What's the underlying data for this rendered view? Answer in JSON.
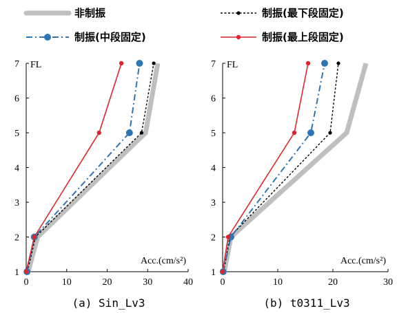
{
  "legend": [
    {
      "label": "非制振",
      "color": "#bfbfbf",
      "style": "thick-solid",
      "marker": "none"
    },
    {
      "label": "制振(最下段固定)",
      "color": "#000000",
      "style": "dotted",
      "marker": "small-dot"
    },
    {
      "label": "制振(中段固定)",
      "color": "#2e75b6",
      "style": "dash-dot",
      "marker": "large-dot"
    },
    {
      "label": "制振(最上段固定)",
      "color": "#e0242c",
      "style": "solid",
      "marker": "dot"
    }
  ],
  "chart_data": [
    {
      "type": "line",
      "caption": "(a) Sin_Lv3",
      "ylabel": "FL",
      "xlabel": "Acc.(cm/s²)",
      "xlim": [
        0,
        40
      ],
      "ylim": [
        1,
        7
      ],
      "xticks": [
        "0",
        "10",
        "20",
        "30",
        "40"
      ],
      "yticks": [
        "1",
        "2",
        "3",
        "4",
        "5",
        "6",
        "7"
      ],
      "grid": false,
      "series": [
        {
          "name": "非制振",
          "x": [
            0.5,
            2.8,
            29.5,
            32.5
          ],
          "y": [
            1,
            2,
            5,
            7
          ]
        },
        {
          "name": "制振(最下段固定)",
          "x": [
            0.3,
            2.3,
            28.5,
            31.5
          ],
          "y": [
            1,
            2,
            5,
            7
          ]
        },
        {
          "name": "制振(中段固定)",
          "x": [
            0.2,
            2.0,
            25.5,
            28.0
          ],
          "y": [
            1,
            2,
            5,
            7
          ]
        },
        {
          "name": "制振(最上段固定)",
          "x": [
            0.0,
            2.0,
            18.0,
            23.5
          ],
          "y": [
            1,
            2,
            5,
            7
          ]
        }
      ]
    },
    {
      "type": "line",
      "caption": "(b) t0311_Lv3",
      "ylabel": "FL",
      "xlabel": "Acc.(cm/s²)",
      "xlim": [
        0,
        30
      ],
      "ylim": [
        1,
        7
      ],
      "xticks": [
        "0",
        "10",
        "20",
        "30"
      ],
      "yticks": [
        "1",
        "2",
        "3",
        "4",
        "5",
        "6",
        "7"
      ],
      "grid": false,
      "series": [
        {
          "name": "非制振",
          "x": [
            0.3,
            1.5,
            22.5,
            26.0
          ],
          "y": [
            1,
            2,
            5,
            7
          ]
        },
        {
          "name": "制振(最下段固定)",
          "x": [
            0.2,
            1.3,
            19.5,
            21.0
          ],
          "y": [
            1,
            2,
            5,
            7
          ]
        },
        {
          "name": "制振(中段固定)",
          "x": [
            0.1,
            1.5,
            16.0,
            18.5
          ],
          "y": [
            1,
            2,
            5,
            7
          ]
        },
        {
          "name": "制振(最上段固定)",
          "x": [
            0.0,
            1.0,
            13.0,
            15.5
          ],
          "y": [
            1,
            2,
            5,
            7
          ]
        }
      ]
    }
  ]
}
